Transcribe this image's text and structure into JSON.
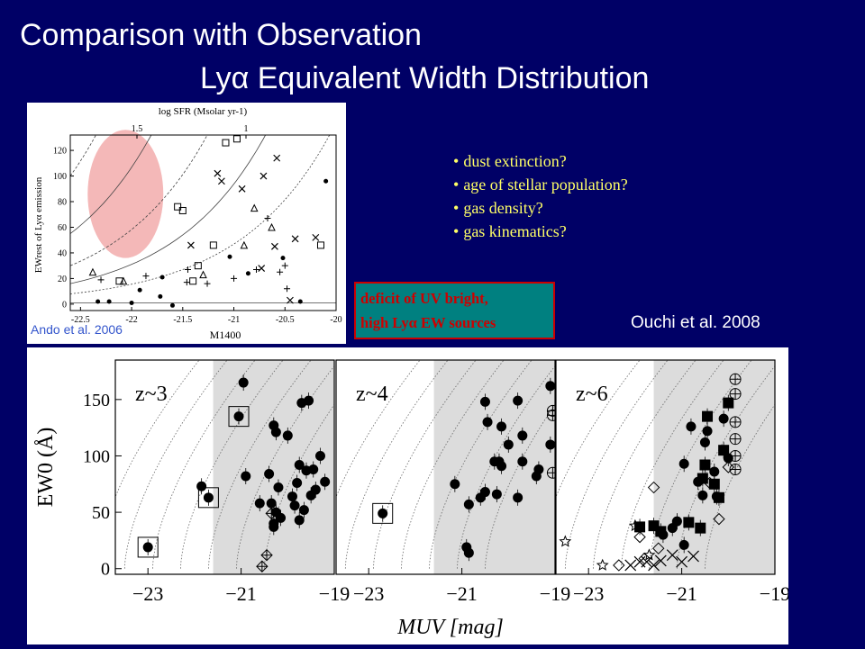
{
  "slide": {
    "title_line1": "Comparison with Observation",
    "title_line2": "Lyα Equivalent Width Distribution",
    "bullets": [
      "dust extinction?",
      "age of stellar population?",
      "gas density?",
      "gas kinematics?"
    ],
    "deficit_lines": [
      "deficit of UV bright,",
      "high Lyα EW sources"
    ],
    "ouchi_credit": "Ouchi et al. 2008",
    "ando_credit": "Ando et al. 2006",
    "colors": {
      "background": "#000066",
      "bullet_text": "#ffff66",
      "deficit_box": "#008080",
      "deficit_text": "#cc0000",
      "highlight_ellipse": "#f4b8b8",
      "shade": "#dcdcdc"
    }
  },
  "chart_data": [
    {
      "type": "scatter",
      "panel": "ando",
      "xlabel": "M1400",
      "ylabel": "EWrest of Lyα emission",
      "top_axis_label": "log SFR (Msolar yr-1)",
      "top_ticks": [
        "1.5",
        "1"
      ],
      "xticks": [
        "-22.5",
        "-22",
        "-21.5",
        "-21",
        "-20.5",
        "-20"
      ],
      "yticks": [
        "0",
        "20",
        "40",
        "60",
        "80",
        "100",
        "120"
      ],
      "xlim": [
        -22.6,
        -20
      ],
      "ylim": [
        -5,
        132
      ],
      "highlight": {
        "x_center": -22.06,
        "y_center": 86,
        "x_radius": 0.37,
        "y_radius": 50
      },
      "points": [
        {
          "x": -22.38,
          "y": 25,
          "m": "tri"
        },
        {
          "x": -22.3,
          "y": 19,
          "m": "plus"
        },
        {
          "x": -22.33,
          "y": 2,
          "m": "dot"
        },
        {
          "x": -22.22,
          "y": 2,
          "m": "dot"
        },
        {
          "x": -22.12,
          "y": 18,
          "m": "sq"
        },
        {
          "x": -22.08,
          "y": 18,
          "m": "tri"
        },
        {
          "x": -22.0,
          "y": 1,
          "m": "dot"
        },
        {
          "x": -21.92,
          "y": 11,
          "m": "dot"
        },
        {
          "x": -21.86,
          "y": 22,
          "m": "plus"
        },
        {
          "x": -21.72,
          "y": 6,
          "m": "dot"
        },
        {
          "x": -21.7,
          "y": 21,
          "m": "dot"
        },
        {
          "x": -21.6,
          "y": -1,
          "m": "dot"
        },
        {
          "x": -21.55,
          "y": 76,
          "m": "sq"
        },
        {
          "x": -21.5,
          "y": 73,
          "m": "sq"
        },
        {
          "x": -21.46,
          "y": 17,
          "m": "plus"
        },
        {
          "x": -21.45,
          "y": 27,
          "m": "plus"
        },
        {
          "x": -21.42,
          "y": 46,
          "m": "x"
        },
        {
          "x": -21.4,
          "y": 18,
          "m": "sq"
        },
        {
          "x": -21.35,
          "y": 30,
          "m": "sq"
        },
        {
          "x": -21.3,
          "y": 23,
          "m": "tri"
        },
        {
          "x": -21.26,
          "y": 16,
          "m": "plus"
        },
        {
          "x": -21.2,
          "y": 46,
          "m": "sq"
        },
        {
          "x": -21.16,
          "y": 102,
          "m": "x"
        },
        {
          "x": -21.12,
          "y": 96,
          "m": "x"
        },
        {
          "x": -21.08,
          "y": 126,
          "m": "sq"
        },
        {
          "x": -21.04,
          "y": 37,
          "m": "dot"
        },
        {
          "x": -21.0,
          "y": 20,
          "m": "plus"
        },
        {
          "x": -20.97,
          "y": 129,
          "m": "sq"
        },
        {
          "x": -20.92,
          "y": 90,
          "m": "x"
        },
        {
          "x": -20.9,
          "y": 46,
          "m": "tri"
        },
        {
          "x": -20.86,
          "y": 24,
          "m": "dot"
        },
        {
          "x": -20.8,
          "y": 75,
          "m": "tri"
        },
        {
          "x": -20.78,
          "y": 27,
          "m": "plus"
        },
        {
          "x": -20.73,
          "y": 28,
          "m": "x"
        },
        {
          "x": -20.71,
          "y": 100,
          "m": "x"
        },
        {
          "x": -20.67,
          "y": 67,
          "m": "plus"
        },
        {
          "x": -20.63,
          "y": 60,
          "m": "tri"
        },
        {
          "x": -20.6,
          "y": 45,
          "m": "x"
        },
        {
          "x": -20.58,
          "y": 114,
          "m": "x"
        },
        {
          "x": -20.55,
          "y": 25,
          "m": "plus"
        },
        {
          "x": -20.52,
          "y": 36,
          "m": "dot"
        },
        {
          "x": -20.5,
          "y": 30,
          "m": "plus"
        },
        {
          "x": -20.48,
          "y": 12,
          "m": "plus"
        },
        {
          "x": -20.45,
          "y": 3,
          "m": "x"
        },
        {
          "x": -20.4,
          "y": 51,
          "m": "x"
        },
        {
          "x": -20.35,
          "y": 2,
          "m": "dot"
        },
        {
          "x": -20.2,
          "y": 52,
          "m": "x"
        },
        {
          "x": -20.15,
          "y": 46,
          "m": "sq"
        },
        {
          "x": -20.1,
          "y": 96,
          "m": "dot"
        }
      ]
    },
    {
      "type": "scatter",
      "panel": "ouchi",
      "xlabel": "MUV [mag]",
      "ylabel": "EW0 (Å)",
      "xticks": [
        "-23",
        "-21",
        "-19"
      ],
      "yticks": [
        "0",
        "50",
        "100",
        "150"
      ],
      "xlim": [
        -23.7,
        -19
      ],
      "ylim": [
        -5,
        185
      ],
      "shade_from_x": -21.6,
      "subpanels": [
        {
          "label": "z~3",
          "points": [
            {
              "x": -23.0,
              "y": 19,
              "m": "dot",
              "box": true
            },
            {
              "x": -21.85,
              "y": 73,
              "m": "dot"
            },
            {
              "x": -21.7,
              "y": 63,
              "m": "dot",
              "box": true
            },
            {
              "x": -20.95,
              "y": 165,
              "m": "dot"
            },
            {
              "x": -20.9,
              "y": 82,
              "m": "dot"
            },
            {
              "x": -21.05,
              "y": 135,
              "m": "dot",
              "box": true
            },
            {
              "x": -20.6,
              "y": 58,
              "m": "dot"
            },
            {
              "x": -20.4,
              "y": 84,
              "m": "dot"
            },
            {
              "x": -20.35,
              "y": 58,
              "m": "dot"
            },
            {
              "x": -20.3,
              "y": 127,
              "m": "dot"
            },
            {
              "x": -20.25,
              "y": 121,
              "m": "dot"
            },
            {
              "x": -20.2,
              "y": 72,
              "m": "dot"
            },
            {
              "x": -20.15,
              "y": 45,
              "m": "dot"
            },
            {
              "x": -20.3,
              "y": 40,
              "m": "dot"
            },
            {
              "x": -20.0,
              "y": 118,
              "m": "dot"
            },
            {
              "x": -19.9,
              "y": 64,
              "m": "dot"
            },
            {
              "x": -19.8,
              "y": 76,
              "m": "dot"
            },
            {
              "x": -19.75,
              "y": 92,
              "m": "dot"
            },
            {
              "x": -19.7,
              "y": 147,
              "m": "dot"
            },
            {
              "x": -19.65,
              "y": 52,
              "m": "dot"
            },
            {
              "x": -19.6,
              "y": 87,
              "m": "dot"
            },
            {
              "x": -19.55,
              "y": 149,
              "m": "dot"
            },
            {
              "x": -19.5,
              "y": 65,
              "m": "dot"
            },
            {
              "x": -19.45,
              "y": 88,
              "m": "dot"
            },
            {
              "x": -19.4,
              "y": 70,
              "m": "dot"
            },
            {
              "x": -19.3,
              "y": 100,
              "m": "dot"
            },
            {
              "x": -19.2,
              "y": 77,
              "m": "dot"
            },
            {
              "x": -19.75,
              "y": 43,
              "m": "dot"
            },
            {
              "x": -20.3,
              "y": 37,
              "m": "dot"
            },
            {
              "x": -20.25,
              "y": 50,
              "m": "dot"
            },
            {
              "x": -19.85,
              "y": 56,
              "m": "dot"
            },
            {
              "x": -20.45,
              "y": 12,
              "m": "crossdiamond"
            },
            {
              "x": -20.55,
              "y": 2,
              "m": "crossdiamond"
            },
            {
              "x": -20.35,
              "y": 49,
              "m": "crossdiamond"
            }
          ]
        },
        {
          "label": "z~4",
          "points": [
            {
              "x": -22.7,
              "y": 49,
              "m": "dot",
              "box": true
            },
            {
              "x": -21.15,
              "y": 75,
              "m": "dot"
            },
            {
              "x": -20.9,
              "y": 19,
              "m": "dot"
            },
            {
              "x": -20.85,
              "y": 14,
              "m": "dot"
            },
            {
              "x": -20.85,
              "y": 57,
              "m": "dot"
            },
            {
              "x": -20.6,
              "y": 63,
              "m": "dot"
            },
            {
              "x": -20.5,
              "y": 68,
              "m": "dot"
            },
            {
              "x": -20.5,
              "y": 148,
              "m": "dot"
            },
            {
              "x": -20.45,
              "y": 130,
              "m": "dot"
            },
            {
              "x": -20.3,
              "y": 95,
              "m": "dot"
            },
            {
              "x": -20.25,
              "y": 66,
              "m": "dot"
            },
            {
              "x": -20.2,
              "y": 95,
              "m": "dot"
            },
            {
              "x": -20.15,
              "y": 91,
              "m": "dot"
            },
            {
              "x": -20.15,
              "y": 126,
              "m": "dot"
            },
            {
              "x": -20.0,
              "y": 110,
              "m": "dot"
            },
            {
              "x": -19.8,
              "y": 149,
              "m": "dot"
            },
            {
              "x": -19.8,
              "y": 63,
              "m": "dot"
            },
            {
              "x": -19.7,
              "y": 95,
              "m": "dot"
            },
            {
              "x": -19.7,
              "y": 118,
              "m": "dot"
            },
            {
              "x": -19.4,
              "y": 82,
              "m": "dot"
            },
            {
              "x": -19.35,
              "y": 88,
              "m": "dot"
            },
            {
              "x": -19.1,
              "y": 110,
              "m": "dot"
            },
            {
              "x": -19.1,
              "y": 162,
              "m": "dot"
            },
            {
              "x": -19.05,
              "y": 136,
              "m": "circplus"
            },
            {
              "x": -19.05,
              "y": 140,
              "m": "circplus"
            },
            {
              "x": -19.05,
              "y": 85,
              "m": "circplus"
            }
          ]
        },
        {
          "label": "z~6",
          "points": [
            {
              "x": -23.5,
              "y": 24,
              "m": "star"
            },
            {
              "x": -22.7,
              "y": 3,
              "m": "star"
            },
            {
              "x": -22.35,
              "y": 3,
              "m": "diamond"
            },
            {
              "x": -22.0,
              "y": 38,
              "m": "star"
            },
            {
              "x": -21.9,
              "y": 28,
              "m": "diamond"
            },
            {
              "x": -21.8,
              "y": 9,
              "m": "diamond"
            },
            {
              "x": -21.7,
              "y": 12,
              "m": "star"
            },
            {
              "x": -21.6,
              "y": 72,
              "m": "diamond"
            },
            {
              "x": -21.5,
              "y": 18,
              "m": "diamond"
            },
            {
              "x": -20.4,
              "y": 76,
              "m": "diamond"
            },
            {
              "x": -20.2,
              "y": 44,
              "m": "diamond"
            },
            {
              "x": -20.0,
              "y": 90,
              "m": "diamond"
            },
            {
              "x": -22.1,
              "y": 3,
              "m": "x"
            },
            {
              "x": -21.9,
              "y": 6,
              "m": "x"
            },
            {
              "x": -21.75,
              "y": 6,
              "m": "x"
            },
            {
              "x": -21.6,
              "y": 3,
              "m": "x"
            },
            {
              "x": -21.45,
              "y": 7,
              "m": "x"
            },
            {
              "x": -21.2,
              "y": 12,
              "m": "x"
            },
            {
              "x": -21.0,
              "y": 6,
              "m": "x"
            },
            {
              "x": -20.75,
              "y": 11,
              "m": "x"
            },
            {
              "x": -21.9,
              "y": 37,
              "m": "sqfill"
            },
            {
              "x": -21.6,
              "y": 38,
              "m": "sqfill"
            },
            {
              "x": -21.45,
              "y": 33,
              "m": "sqfill"
            },
            {
              "x": -20.85,
              "y": 41,
              "m": "sqfill"
            },
            {
              "x": -20.6,
              "y": 36,
              "m": "sqfill"
            },
            {
              "x": -20.55,
              "y": 80,
              "m": "sqfill"
            },
            {
              "x": -20.5,
              "y": 92,
              "m": "sqfill"
            },
            {
              "x": -20.45,
              "y": 135,
              "m": "sqfill"
            },
            {
              "x": -20.3,
              "y": 75,
              "m": "sqfill"
            },
            {
              "x": -20.2,
              "y": 63,
              "m": "sqfill"
            },
            {
              "x": -20.1,
              "y": 105,
              "m": "sqfill"
            },
            {
              "x": -20.0,
              "y": 147,
              "m": "sqfill"
            },
            {
              "x": -21.4,
              "y": 30,
              "m": "dot"
            },
            {
              "x": -21.2,
              "y": 36,
              "m": "dot"
            },
            {
              "x": -21.1,
              "y": 42,
              "m": "dot"
            },
            {
              "x": -20.95,
              "y": 93,
              "m": "dot"
            },
            {
              "x": -20.8,
              "y": 126,
              "m": "dot"
            },
            {
              "x": -20.65,
              "y": 77,
              "m": "dot"
            },
            {
              "x": -20.55,
              "y": 65,
              "m": "dot"
            },
            {
              "x": -20.5,
              "y": 112,
              "m": "dot"
            },
            {
              "x": -20.45,
              "y": 122,
              "m": "dot"
            },
            {
              "x": -20.3,
              "y": 86,
              "m": "dot"
            },
            {
              "x": -20.25,
              "y": 64,
              "m": "dot"
            },
            {
              "x": -20.1,
              "y": 133,
              "m": "dot"
            },
            {
              "x": -20.0,
              "y": 98,
              "m": "dot"
            },
            {
              "x": -20.95,
              "y": 21,
              "m": "dot"
            },
            {
              "x": -19.85,
              "y": 168,
              "m": "circplus"
            },
            {
              "x": -19.85,
              "y": 155,
              "m": "circplus"
            },
            {
              "x": -19.85,
              "y": 130,
              "m": "circplus"
            },
            {
              "x": -19.85,
              "y": 115,
              "m": "circplus"
            },
            {
              "x": -19.85,
              "y": 100,
              "m": "circplus"
            },
            {
              "x": -19.85,
              "y": 88,
              "m": "circplus"
            }
          ]
        }
      ]
    }
  ]
}
